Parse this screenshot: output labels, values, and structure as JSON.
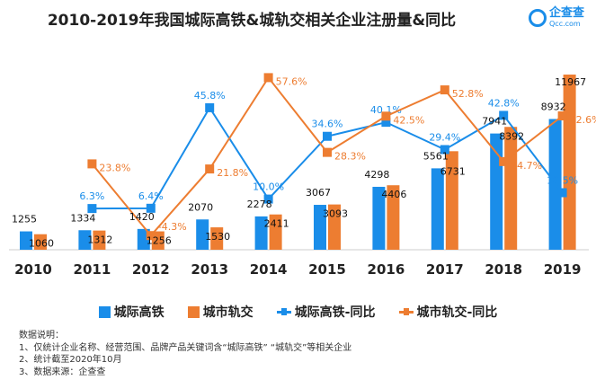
{
  "title": "2010-2019年我国城际高铁&城轨交相关企业注册量&同比",
  "logo": {
    "name": "企查查",
    "domain": "Qcc.com"
  },
  "colors": {
    "blue": "#1a8de9",
    "orange": "#ed7d31"
  },
  "chart_data": {
    "type": "bar+line",
    "categories": [
      "2010",
      "2011",
      "2012",
      "2013",
      "2014",
      "2015",
      "2016",
      "2017",
      "2018",
      "2019"
    ],
    "series": [
      {
        "name": "城际高铁",
        "type": "bar",
        "values": [
          1255,
          1334,
          1420,
          2070,
          2278,
          3067,
          4298,
          5561,
          7941,
          8932
        ]
      },
      {
        "name": "城市轨交",
        "type": "bar",
        "values": [
          1060,
          1312,
          1256,
          1530,
          2411,
          3093,
          4406,
          6731,
          8392,
          11967
        ]
      },
      {
        "name": "城际高铁-同比",
        "type": "line",
        "values": [
          null,
          6.3,
          6.4,
          45.8,
          10.0,
          34.6,
          40.1,
          29.4,
          42.8,
          12.5
        ],
        "labels": [
          "",
          "6.3%",
          "6.4%",
          "45.8%",
          "10.0%",
          "34.6%",
          "40.1%",
          "29.4%",
          "42.8%",
          "12.5%"
        ]
      },
      {
        "name": "城市轨交-同比",
        "type": "line",
        "values": [
          null,
          23.8,
          -4.3,
          21.8,
          57.6,
          28.3,
          42.5,
          52.8,
          24.7,
          42.6
        ],
        "labels": [
          "",
          "23.8%",
          "-4.3%",
          "21.8%",
          "57.6%",
          "28.3%",
          "42.5%",
          "52.8%",
          "24.7%",
          "42.6%"
        ]
      }
    ],
    "legend": "bottom",
    "grid": false
  },
  "notes": [
    "数据说明：",
    "1、仅统计企业名称、经营范围、品牌产品关键词含“城际高铁” “城轨交”等相关企业",
    "2、统计截至2020年10月",
    "3、数据来源：企查查"
  ]
}
